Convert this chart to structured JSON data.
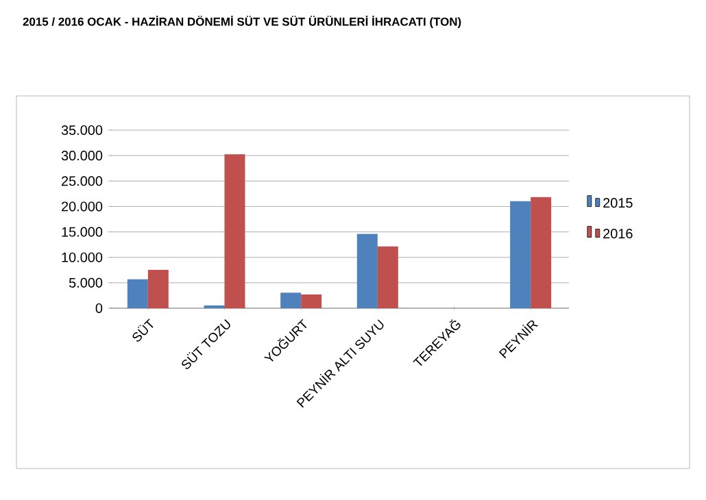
{
  "chart_data": {
    "type": "bar",
    "title": "2015 / 2016 OCAK - HAZİRAN DÖNEMİ SÜT VE SÜT ÜRÜNLERİ İHRACATI (TON)",
    "categories": [
      "SÜT",
      "SÜT TOZU",
      "YOĞURT",
      "PEYNİR ALTI SUYU",
      "TEREYAĞ",
      "PEYNİR"
    ],
    "series": [
      {
        "name": "2015",
        "color": "#4f81bd",
        "values": [
          5700,
          550,
          3050,
          14600,
          0,
          21050
        ]
      },
      {
        "name": "2016",
        "color": "#c0504d",
        "values": [
          7550,
          30250,
          2700,
          12150,
          0,
          21850
        ]
      }
    ],
    "ylim": [
      0,
      35000
    ],
    "yticks": [
      0,
      {
        "value": 5000,
        "label": "5.000"
      },
      {
        "value": 10000,
        "label": "10.000"
      },
      {
        "value": 15000,
        "label": "15.000"
      },
      {
        "value": 20000,
        "label": "20.000"
      },
      {
        "value": 25000,
        "label": "25.000"
      },
      {
        "value": 30000,
        "label": "30.000"
      },
      {
        "value": 35000,
        "label": "35.000"
      }
    ],
    "grid": "y",
    "legend": "right"
  }
}
